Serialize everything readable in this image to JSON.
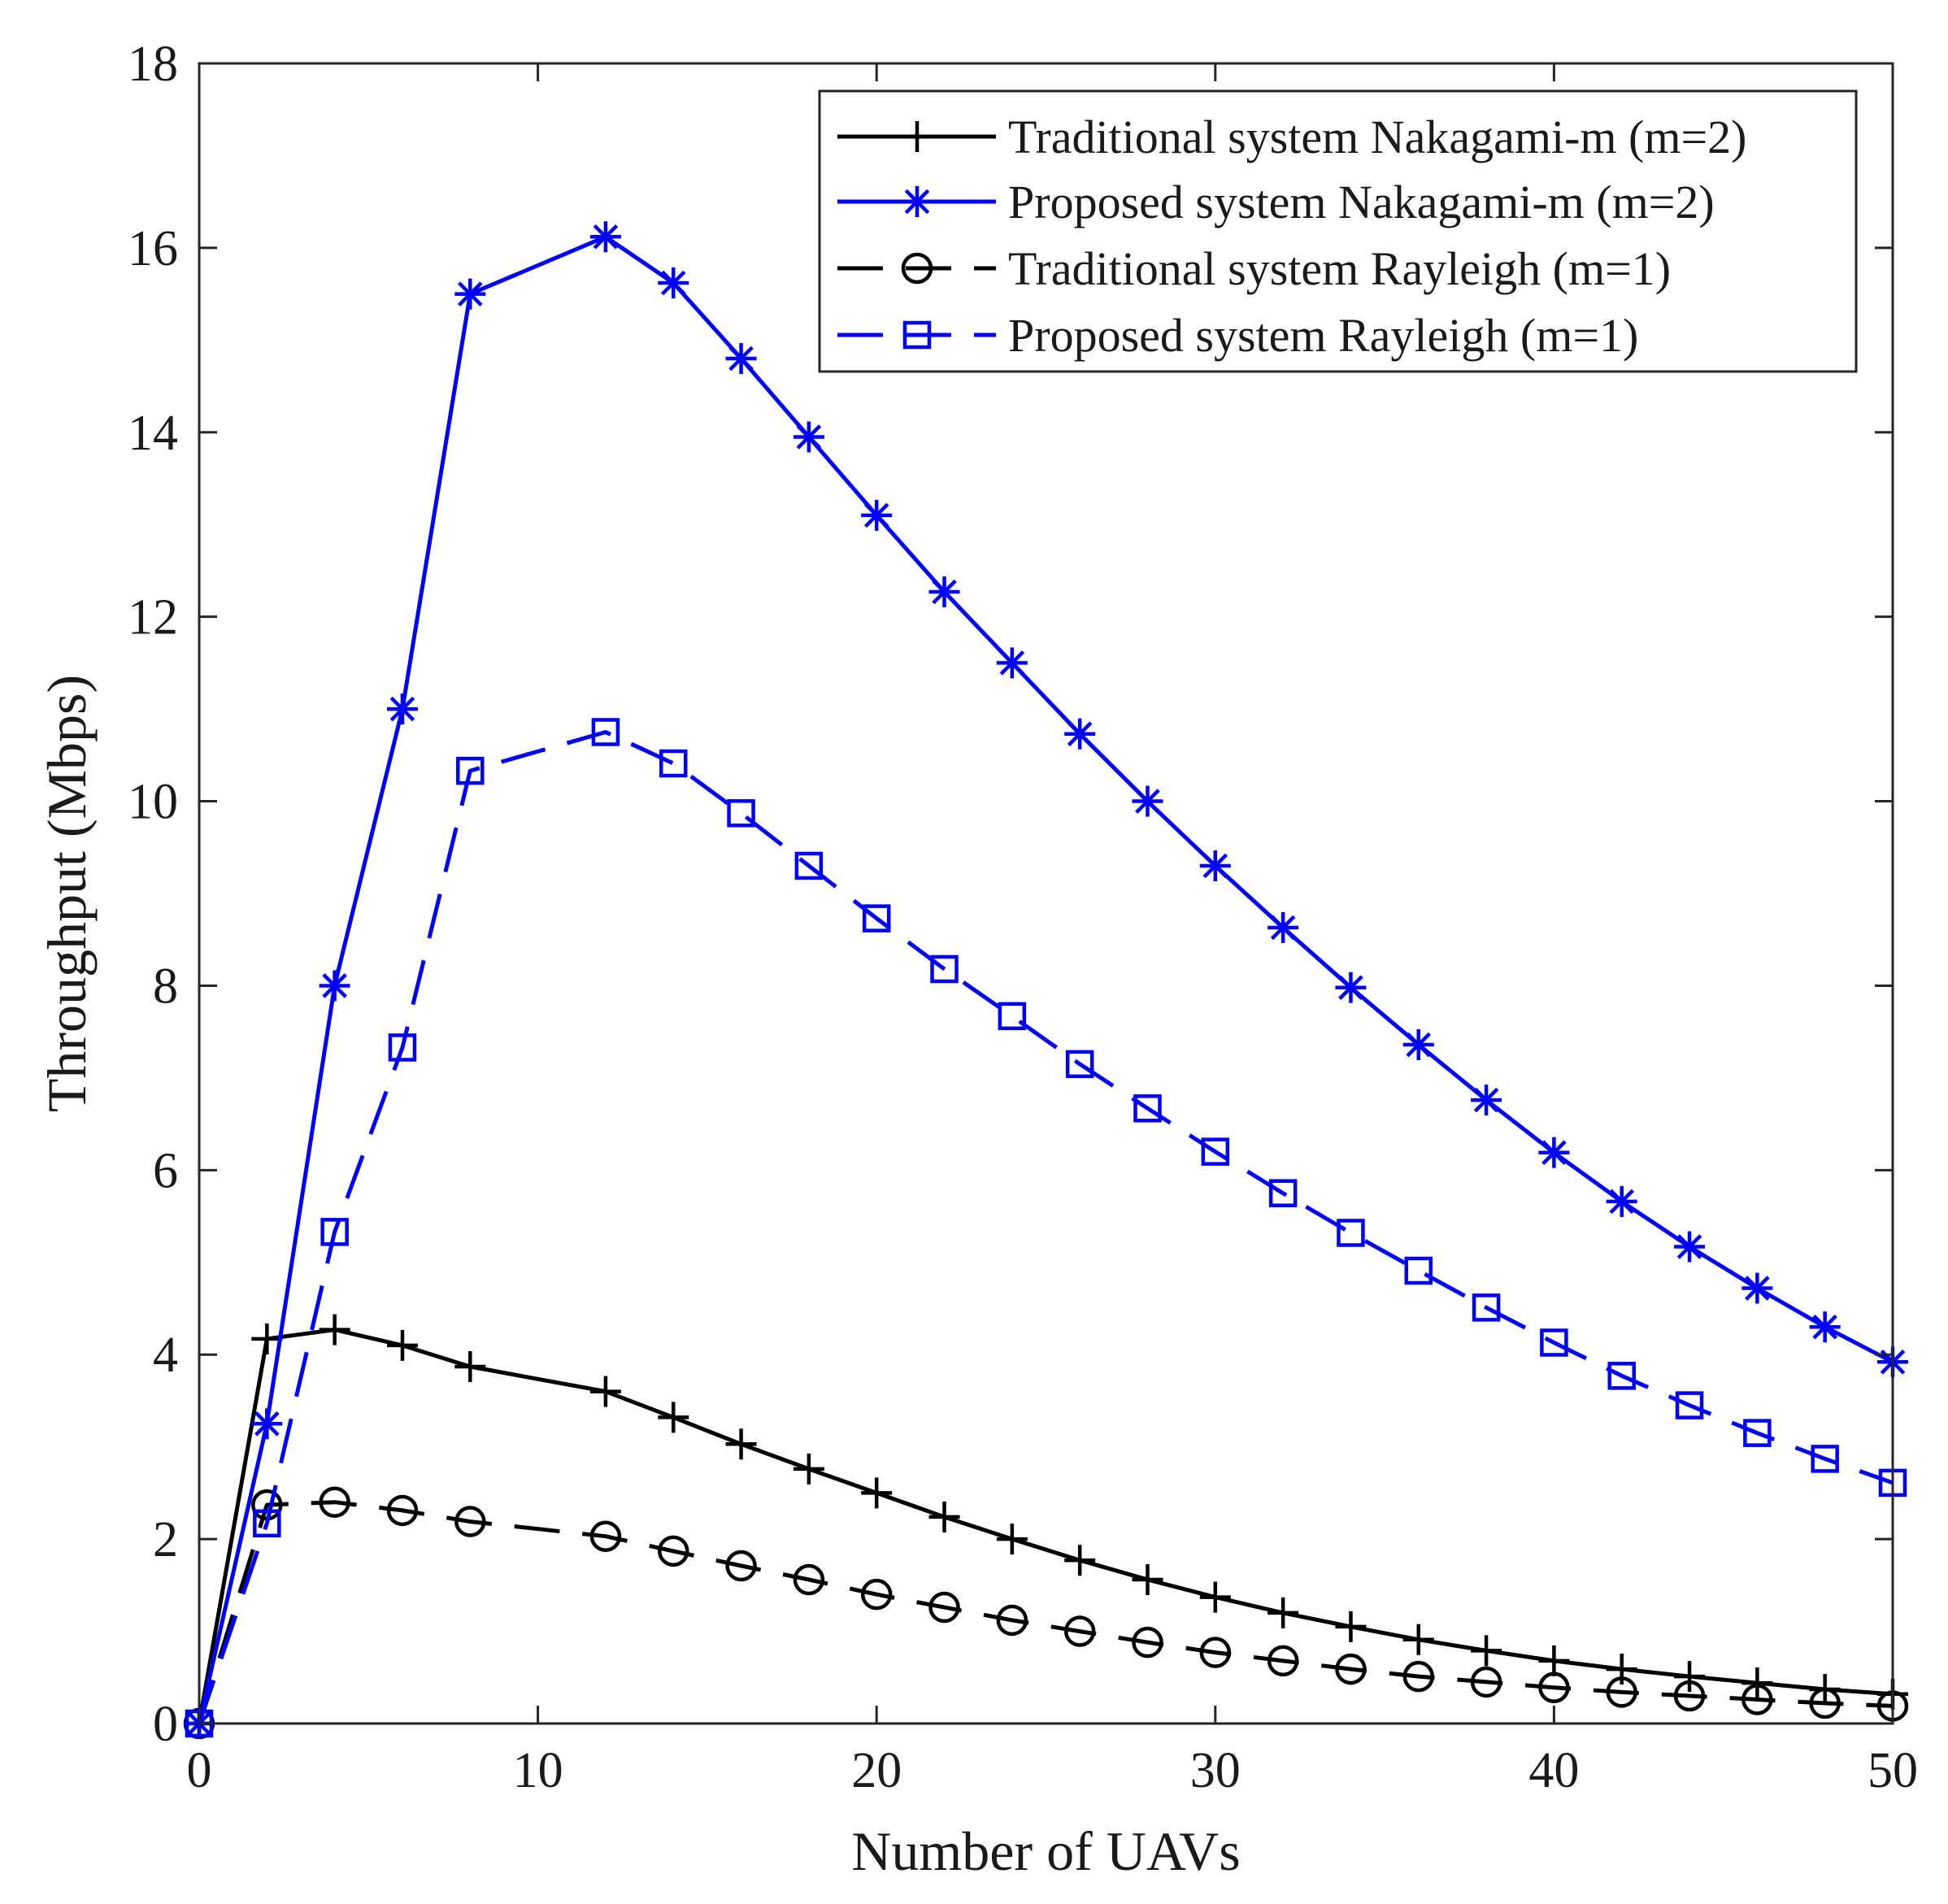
{
  "chart_data": {
    "type": "line",
    "title": "",
    "xlabel": "Number of UAVs",
    "ylabel": "Throughput (Mbps)",
    "xlim": [
      0,
      50
    ],
    "ylim": [
      0,
      18
    ],
    "xticks": [
      0,
      10,
      20,
      30,
      40,
      50
    ],
    "yticks": [
      0,
      2,
      4,
      6,
      8,
      10,
      12,
      14,
      16,
      18
    ],
    "xtick_labels": [
      "0",
      "10",
      "20",
      "30",
      "40",
      "50"
    ],
    "ytick_labels": [
      "0",
      "2",
      "4",
      "6",
      "8",
      "10",
      "12",
      "14",
      "16",
      "18"
    ],
    "grid": false,
    "legend_position": "top-right",
    "x": [
      0,
      2,
      4,
      6,
      8,
      12,
      14,
      16,
      18,
      20,
      22,
      24,
      26,
      28,
      30,
      32,
      34,
      36,
      38,
      40,
      42,
      44,
      46,
      48,
      50
    ],
    "series": [
      {
        "name": "Traditional system Nakagami-m (m=2)",
        "color": "#000000",
        "dash": "solid",
        "marker": "plus",
        "values": [
          0,
          4.17,
          4.27,
          4.1,
          3.87,
          3.6,
          3.32,
          3.03,
          2.76,
          2.5,
          2.24,
          2.0,
          1.77,
          1.56,
          1.37,
          1.2,
          1.05,
          0.91,
          0.79,
          0.68,
          0.59,
          0.51,
          0.44,
          0.37,
          0.32
        ]
      },
      {
        "name": "Proposed system Nakagami-m (m=2)",
        "color": "#0000ff",
        "dash": "solid",
        "marker": "asterisk",
        "values": [
          0,
          3.25,
          8.0,
          11.0,
          15.5,
          16.12,
          15.62,
          14.8,
          13.95,
          13.1,
          12.27,
          11.5,
          10.73,
          10.0,
          9.3,
          8.63,
          7.98,
          7.36,
          6.76,
          6.19,
          5.66,
          5.17,
          4.72,
          4.3,
          3.92
        ]
      },
      {
        "name": "Traditional system Rayleigh (m=1)",
        "color": "#000000",
        "dash": "dashed",
        "marker": "circle",
        "values": [
          0,
          2.37,
          2.4,
          2.31,
          2.19,
          2.03,
          1.87,
          1.71,
          1.56,
          1.4,
          1.26,
          1.12,
          1.0,
          0.88,
          0.77,
          0.68,
          0.59,
          0.51,
          0.45,
          0.39,
          0.34,
          0.3,
          0.26,
          0.22,
          0.19
        ]
      },
      {
        "name": "Proposed system Rayleigh (m=1)",
        "color": "#0000ff",
        "dash": "dashed",
        "marker": "square",
        "values": [
          0,
          2.17,
          5.33,
          7.33,
          10.33,
          10.75,
          10.41,
          9.87,
          9.3,
          8.73,
          8.18,
          7.67,
          7.15,
          6.67,
          6.2,
          5.75,
          5.32,
          4.91,
          4.51,
          4.13,
          3.77,
          3.45,
          3.15,
          2.87,
          2.61
        ]
      }
    ]
  }
}
